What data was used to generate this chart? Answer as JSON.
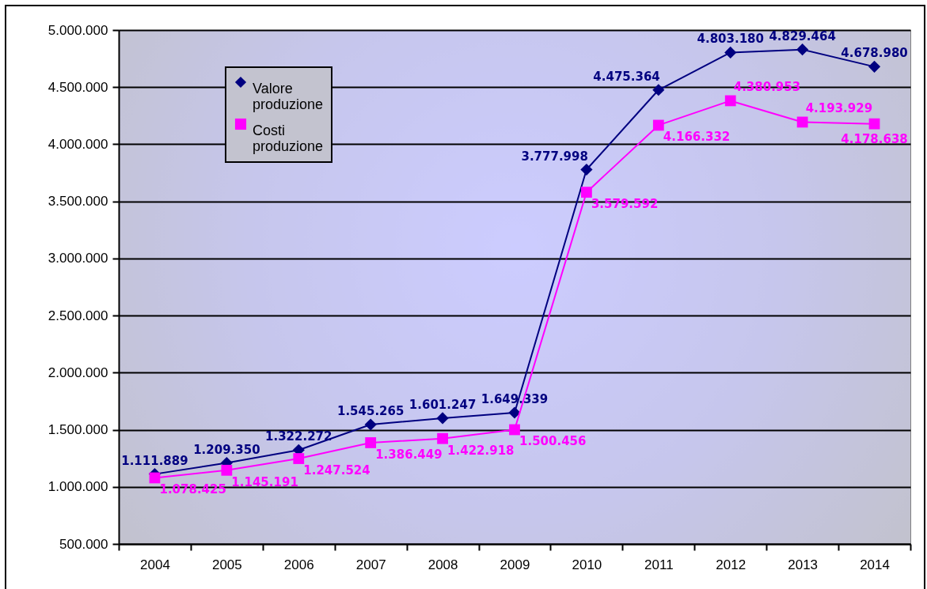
{
  "chart_data": {
    "type": "line",
    "categories": [
      "2004",
      "2005",
      "2006",
      "2007",
      "2008",
      "2009",
      "2010",
      "2011",
      "2012",
      "2013",
      "2014"
    ],
    "series": [
      {
        "name": "Valore produzione",
        "color": "#000080",
        "marker": "diamond",
        "values": [
          1111889,
          1209350,
          1322272,
          1545265,
          1601247,
          1649339,
          3777998,
          4475364,
          4803180,
          4829464,
          4678980
        ],
        "value_labels": [
          "1.111.889",
          "1.209.350",
          "1.322.272",
          "1.545.265",
          "1.601.247",
          "1.649.339",
          "3.777.998",
          "4.475.364",
          "4.803.180",
          "4.829.464",
          "4.678.980"
        ]
      },
      {
        "name": "Costi produzione",
        "color": "#ff00ff",
        "marker": "square",
        "values": [
          1078425,
          1145191,
          1247524,
          1386449,
          1422918,
          1500456,
          3579592,
          4166332,
          4380953,
          4193929,
          4178638
        ],
        "value_labels": [
          "1.078.425",
          "1.145.191",
          "1.247.524",
          "1.386.449",
          "1.422.918",
          "1.500.456",
          "3.579.592",
          "4.166.332",
          "4.380.953",
          "4.193.929",
          "4.178.638"
        ]
      }
    ],
    "ylim": [
      500000,
      5000000
    ],
    "yticks": [
      {
        "value": 500000,
        "label": "500.000"
      },
      {
        "value": 1000000,
        "label": "1.000.000"
      },
      {
        "value": 1500000,
        "label": "1.500.000"
      },
      {
        "value": 2000000,
        "label": "2.000.000"
      },
      {
        "value": 2500000,
        "label": "2.500.000"
      },
      {
        "value": 3000000,
        "label": "3.000.000"
      },
      {
        "value": 3500000,
        "label": "3.500.000"
      },
      {
        "value": 4000000,
        "label": "4.000.000"
      },
      {
        "value": 4500000,
        "label": "4.500.000"
      },
      {
        "value": 5000000,
        "label": "5.000.000"
      }
    ],
    "grid": "y",
    "legend": "top left"
  }
}
